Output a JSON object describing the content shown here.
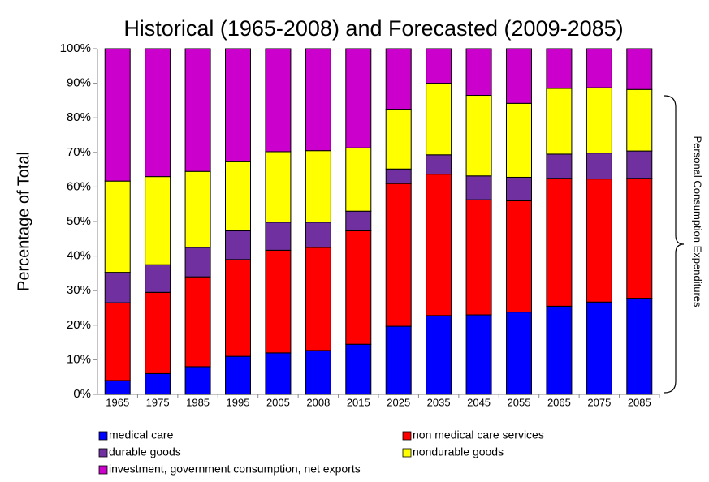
{
  "chart_data": {
    "type": "stacked_bar",
    "title": "Historical (1965-2008) and Forecasted (2009-2085)",
    "y_label": "Percentage of  Total",
    "annotation": "Personal Consumption Expenditures",
    "categories": [
      "1965",
      "1975",
      "1985",
      "1995",
      "2005",
      "2008",
      "2015",
      "2025",
      "2035",
      "2045",
      "2055",
      "2065",
      "2075",
      "2085"
    ],
    "series": [
      {
        "name": "medical care",
        "color": "#0000ff",
        "values": [
          4,
          6,
          8,
          11,
          12,
          12.7,
          14.5,
          19.7,
          22.8,
          23,
          23.8,
          25.5,
          26.7,
          27.8
        ]
      },
      {
        "name": "non medical care services",
        "color": "#ff0000",
        "values": [
          22.5,
          23.5,
          26,
          28,
          29.7,
          29.8,
          32.8,
          41.3,
          40.9,
          33.3,
          32.2,
          37,
          35.6,
          34.7
        ]
      },
      {
        "name": "durable goods",
        "color": "#7030a0",
        "values": [
          8.8,
          8,
          8.5,
          8.3,
          8.1,
          7.3,
          5.7,
          4.2,
          5.6,
          6.9,
          6.8,
          7,
          7.5,
          7.9
        ]
      },
      {
        "name": "nondurable goods",
        "color": "#ffff00",
        "values": [
          26.4,
          25.5,
          22,
          20,
          20.4,
          20.7,
          18.3,
          17.3,
          20.7,
          23.3,
          21.4,
          19,
          18.9,
          17.8
        ]
      },
      {
        "name": "investment, government consumption,  net exports",
        "color": "#cc00cc",
        "values": [
          38.3,
          37,
          35.5,
          32.7,
          29.8,
          29.5,
          28.7,
          17.5,
          10,
          13.5,
          15.8,
          11.5,
          11.3,
          11.8
        ]
      }
    ],
    "ylim": [
      0,
      100
    ],
    "yticks": [
      {
        "value": 0,
        "label": "0%"
      },
      {
        "value": 10,
        "label": "10%"
      },
      {
        "value": 20,
        "label": "20%"
      },
      {
        "value": 30,
        "label": "30%"
      },
      {
        "value": 40,
        "label": "40%"
      },
      {
        "value": 50,
        "label": "50%"
      },
      {
        "value": 60,
        "label": "60%"
      },
      {
        "value": 70,
        "label": "70%"
      },
      {
        "value": 80,
        "label": "80%"
      },
      {
        "value": 90,
        "label": "90%"
      },
      {
        "value": 100,
        "label": "100%"
      }
    ],
    "grid": false
  }
}
